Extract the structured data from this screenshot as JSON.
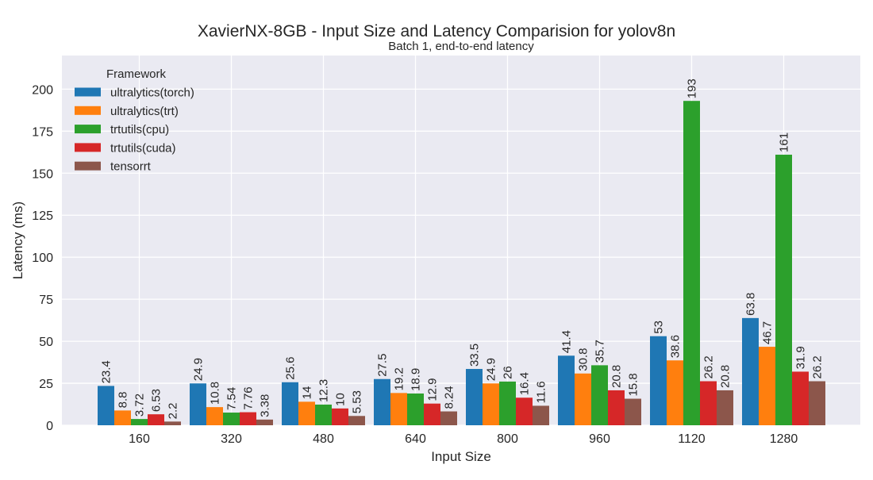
{
  "chart_data": {
    "type": "bar",
    "title": "XavierNX-8GB - Input Size and Latency Comparision for yolov8n",
    "subtitle": "Batch 1, end-to-end latency",
    "xlabel": "Input Size",
    "ylabel": "Latency (ms)",
    "ylim": [
      0,
      220
    ],
    "yticks": [
      0,
      25,
      50,
      75,
      100,
      125,
      150,
      175,
      200
    ],
    "grid": true,
    "legend_title": "Framework",
    "legend_position": "top-left",
    "categories": [
      "160",
      "320",
      "480",
      "640",
      "800",
      "960",
      "1120",
      "1280"
    ],
    "series": [
      {
        "name": "ultralytics(torch)",
        "color": "#1f77b4",
        "values": [
          23.4,
          24.9,
          25.6,
          27.5,
          33.5,
          41.4,
          53,
          63.8
        ],
        "labels": [
          "23.4",
          "24.9",
          "25.6",
          "27.5",
          "33.5",
          "41.4",
          "53",
          "63.8"
        ]
      },
      {
        "name": "ultralytics(trt)",
        "color": "#ff7f0e",
        "values": [
          8.8,
          10.8,
          14,
          19.2,
          24.9,
          30.8,
          38.6,
          46.7
        ],
        "labels": [
          "8.8",
          "10.8",
          "14",
          "19.2",
          "24.9",
          "30.8",
          "38.6",
          "46.7"
        ]
      },
      {
        "name": "trtutils(cpu)",
        "color": "#2ca02c",
        "values": [
          3.72,
          7.54,
          12.3,
          18.9,
          26,
          35.7,
          193,
          161
        ],
        "labels": [
          "3.72",
          "7.54",
          "12.3",
          "18.9",
          "26",
          "35.7",
          "193",
          "161"
        ]
      },
      {
        "name": "trtutils(cuda)",
        "color": "#d62728",
        "values": [
          6.53,
          7.76,
          10,
          12.9,
          16.4,
          20.8,
          26.2,
          31.9
        ],
        "labels": [
          "6.53",
          "7.76",
          "10",
          "12.9",
          "16.4",
          "20.8",
          "26.2",
          "31.9"
        ]
      },
      {
        "name": "tensorrt",
        "color": "#8c564b",
        "values": [
          2.2,
          3.38,
          5.53,
          8.24,
          11.6,
          15.8,
          20.8,
          26.2
        ],
        "labels": [
          "2.2",
          "3.38",
          "5.53",
          "8.24",
          "11.6",
          "15.8",
          "20.8",
          "26.2"
        ]
      }
    ]
  }
}
